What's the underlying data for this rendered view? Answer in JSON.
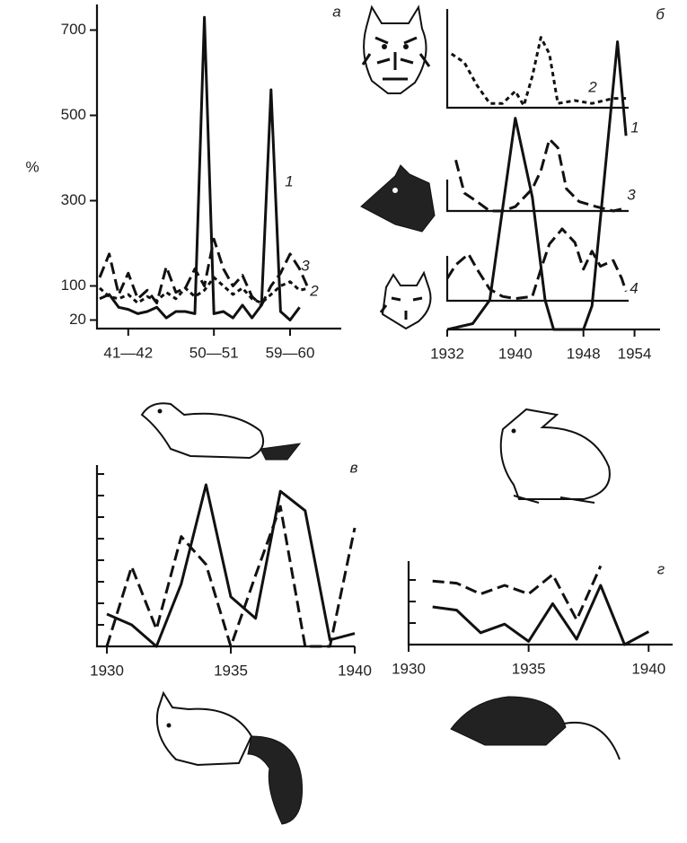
{
  "chart_data": [
    {
      "type": "line",
      "label": "а",
      "ylabel": "%",
      "categories": [
        null,
        null,
        null,
        "41—42",
        null,
        null,
        null,
        null,
        null,
        null,
        null,
        null,
        "50—51",
        null,
        null,
        null,
        null,
        null,
        null,
        null,
        "59—60",
        null,
        null,
        null,
        null
      ],
      "ylim": [
        0,
        760
      ],
      "yticks": [
        20,
        100,
        300,
        500,
        700
      ],
      "series": [
        {
          "name": "1",
          "color": "#111",
          "dash": "solid",
          "values": [
            70,
            80,
            50,
            45,
            35,
            40,
            50,
            25,
            40,
            40,
            35,
            730,
            35,
            40,
            25,
            55,
            25,
            55,
            560,
            40,
            20,
            50,
            null,
            null,
            null
          ]
        },
        {
          "name": "2",
          "color": "#111",
          "dash": "dotted",
          "values": [
            95,
            75,
            70,
            80,
            60,
            75,
            65,
            85,
            70,
            95,
            75,
            90,
            120,
            100,
            80,
            95,
            70,
            60,
            80,
            100,
            110,
            90,
            95,
            null,
            null
          ]
        },
        {
          "name": "3",
          "color": "#111",
          "dash": "dashed",
          "values": [
            120,
            175,
            80,
            130,
            70,
            90,
            60,
            145,
            85,
            95,
            140,
            100,
            210,
            140,
            100,
            125,
            75,
            55,
            100,
            130,
            175,
            140,
            90,
            null,
            null
          ]
        }
      ]
    },
    {
      "type": "line",
      "label": "б",
      "xlim": [
        1932,
        1957
      ],
      "xticks": [
        1932,
        1940,
        1948,
        1954
      ],
      "ylim": [
        0,
        100
      ],
      "series": [
        {
          "name": "1",
          "color": "#111",
          "dash": "solid",
          "x": [
            1932,
            1935,
            1937,
            1940,
            1942,
            1943.5,
            1944.5,
            1948,
            1949,
            1952,
            1953
          ],
          "values": [
            0,
            2,
            10,
            72,
            45,
            10,
            0,
            0,
            8,
            98,
            66
          ]
        },
        {
          "name": "2",
          "color": "#111",
          "dash": "dotted",
          "x": [
            1932.5,
            1934,
            1935.5,
            1937,
            1938.5,
            1940,
            1941,
            1942,
            1943,
            1944,
            1945,
            1947,
            1949,
            1951.5,
            1953
          ],
          "values": [
            75,
            63,
            31,
            6,
            6,
            23,
            3,
            44,
            98,
            75,
            6,
            10,
            6,
            13,
            13
          ]
        },
        {
          "name": "3",
          "color": "#111",
          "dash": "dashed",
          "x": [
            1933,
            1934,
            1935.5,
            1937,
            1938.5,
            1940,
            1942,
            1943,
            1944,
            1945,
            1946,
            1947.5,
            1949.5,
            1951.5,
            1953
          ],
          "values": [
            71,
            25,
            13,
            0,
            0,
            6,
            31,
            56,
            100,
            88,
            31,
            13,
            6,
            0,
            4
          ]
        },
        {
          "name": "4",
          "color": "#111",
          "dash": "dashed",
          "x": [
            1932,
            1933,
            1934.5,
            1935.5,
            1937,
            1938.5,
            1940,
            1942,
            1943,
            1944,
            1945.5,
            1947,
            1948,
            1949,
            1950,
            1951.5,
            1952.5,
            1953
          ],
          "values": [
            31,
            50,
            65,
            44,
            16,
            6,
            3,
            6,
            44,
            79,
            100,
            81,
            44,
            69,
            48,
            56,
            31,
            13
          ]
        }
      ]
    },
    {
      "type": "line",
      "label": "в",
      "x": [
        1930,
        1931,
        1932,
        1933,
        1934,
        1935,
        1936,
        1937,
        1938,
        1939,
        1940
      ],
      "xlim": [
        1929.6,
        1940
      ],
      "xticks": [
        1930,
        1935,
        1940
      ],
      "ylim": [
        0,
        8.5
      ],
      "yticks": [
        1,
        2,
        3,
        4,
        5,
        6,
        7,
        8
      ],
      "ytick_labels": false,
      "series": [
        {
          "color": "#111",
          "dash": "solid",
          "values": [
            1.5,
            1.0,
            0,
            2.9,
            7.5,
            2.3,
            1.3,
            7.2,
            6.3,
            0.3,
            0.6
          ]
        },
        {
          "color": "#111",
          "dash": "dashed",
          "values": [
            0,
            3.7,
            0.8,
            5.1,
            3.8,
            0,
            3.3,
            6.5,
            0,
            0,
            5.5
          ]
        }
      ]
    },
    {
      "type": "line",
      "label": "г",
      "x": [
        1931,
        1932,
        1933,
        1934,
        1935,
        1936,
        1937,
        1938,
        1939,
        1940
      ],
      "xlim": [
        1930,
        1941
      ],
      "xticks": [
        1930,
        1935,
        1940
      ],
      "ylim": [
        0,
        4
      ],
      "yticks": [
        1,
        2,
        3
      ],
      "ytick_labels": false,
      "series": [
        {
          "color": "#111",
          "dash": "solid",
          "values": [
            1.75,
            1.6,
            0.55,
            0.95,
            0.15,
            1.9,
            0.25,
            2.75,
            0,
            0.6
          ]
        },
        {
          "color": "#111",
          "dash": "dashed",
          "values": [
            2.95,
            2.85,
            2.35,
            2.75,
            2.35,
            3.25,
            1.15,
            3.65,
            null,
            null
          ]
        }
      ]
    }
  ]
}
